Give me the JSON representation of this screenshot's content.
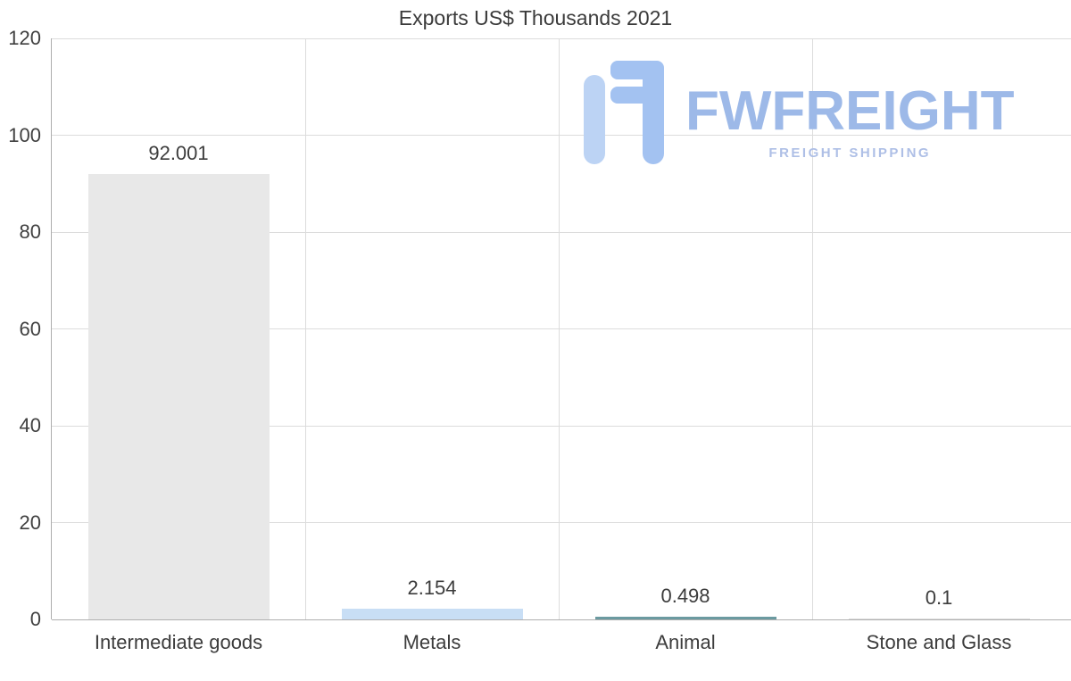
{
  "chart_data": {
    "type": "bar",
    "title": "Exports US$ Thousands 2021",
    "categories": [
      "Intermediate goods",
      "Metals",
      "Animal",
      "Stone and Glass"
    ],
    "values": [
      92.001,
      2.154,
      0.498,
      0.1
    ],
    "value_labels": [
      "92.001",
      "2.154",
      "0.498",
      "0.1"
    ],
    "bar_colors": [
      "#e8e8e8",
      "#c8def5",
      "#6b9aa0",
      "#dcdcdc"
    ],
    "xlabel": "",
    "ylabel": "",
    "ylim": [
      0,
      120
    ],
    "yticks": [
      0,
      20,
      40,
      60,
      80,
      100,
      120
    ],
    "grid": true,
    "legend_position": "none"
  },
  "watermark": {
    "brand": "FWFREIGHT",
    "tagline": "FREIGHT SHIPPING",
    "brand_color": "#9db9e8",
    "tagline_color": "#aebfe6",
    "icon_color_light": "#bcd3f4",
    "icon_color_dark": "#a3c2f1"
  },
  "colors": {
    "grid": "#dcdcdc",
    "axis": "#aeaeae",
    "text": "#3c3c3c",
    "background": "#ffffff"
  }
}
